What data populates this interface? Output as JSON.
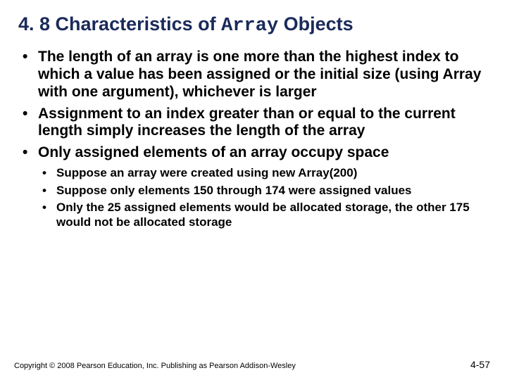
{
  "title": {
    "prefix": "4. 8 Characteristics of ",
    "mono": "Array",
    "suffix": " Objects"
  },
  "bullets": [
    "The length of an array is one more than the highest index to which a value has been assigned or the initial size (using Array with one argument), whichever is larger",
    "Assignment to an index greater than or equal to the current length simply increases the length of the array",
    "Only assigned elements of an array occupy space"
  ],
  "subbullets": [
    "Suppose an array were created using new Array(200)",
    "Suppose only elements 150 through 174 were assigned values",
    "Only the 25 assigned elements would be allocated storage, the other 175 would not be allocated storage"
  ],
  "footer": {
    "copyright": "Copyright © 2008 Pearson Education, Inc. Publishing as Pearson Addison-Wesley",
    "pagenum": "4-57"
  },
  "colors": {
    "title": "#1a2a5a",
    "text": "#000000",
    "background": "#ffffff"
  }
}
